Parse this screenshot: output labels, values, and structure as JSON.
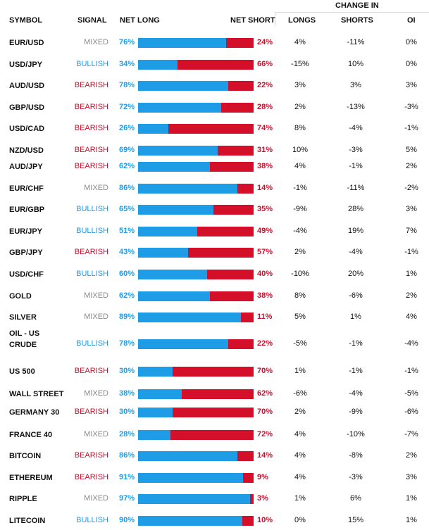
{
  "headers": {
    "symbol": "SYMBOL",
    "signal": "SIGNAL",
    "net_long": "NET LONG",
    "net_short": "NET SHORT",
    "change_in": "CHANGE IN",
    "longs": "LONGS",
    "shorts": "SHORTS",
    "oi": "OI"
  },
  "colors": {
    "long": "#1f9ce6",
    "short": "#d40f2a",
    "bullish": "#1f9ce6",
    "bearish": "#c8102e",
    "mixed": "#888888"
  },
  "rows": [
    {
      "symbol": "EUR/USD",
      "signal": "MIXED",
      "long_pct": 76,
      "short_pct": 24,
      "long_label": "76%",
      "short_label": "24%",
      "longs": "4%",
      "shorts": "-11%",
      "oi": "0%"
    },
    {
      "symbol": "USD/JPY",
      "signal": "BULLISH",
      "long_pct": 34,
      "short_pct": 66,
      "long_label": "34%",
      "short_label": "66%",
      "longs": "-15%",
      "shorts": "10%",
      "oi": "0%"
    },
    {
      "symbol": "AUD/USD",
      "signal": "BEARISH",
      "long_pct": 78,
      "short_pct": 22,
      "long_label": "78%",
      "short_label": "22%",
      "longs": "3%",
      "shorts": "3%",
      "oi": "3%"
    },
    {
      "symbol": "GBP/USD",
      "signal": "BEARISH",
      "long_pct": 72,
      "short_pct": 28,
      "long_label": "72%",
      "short_label": "28%",
      "longs": "2%",
      "shorts": "-13%",
      "oi": "-3%"
    },
    {
      "symbol": "USD/CAD",
      "signal": "BEARISH",
      "long_pct": 26,
      "short_pct": 74,
      "long_label": "26%",
      "short_label": "74%",
      "longs": "8%",
      "shorts": "-4%",
      "oi": "-1%"
    },
    {
      "symbol": "NZD/USD",
      "signal": "BEARISH",
      "long_pct": 69,
      "short_pct": 31,
      "long_label": "69%",
      "short_label": "31%",
      "longs": "10%",
      "shorts": "-3%",
      "oi": "5%"
    },
    {
      "symbol": "AUD/JPY",
      "signal": "BEARISH",
      "long_pct": 62,
      "short_pct": 38,
      "long_label": "62%",
      "short_label": "38%",
      "longs": "4%",
      "shorts": "-1%",
      "oi": "2%"
    },
    {
      "symbol": "EUR/CHF",
      "signal": "MIXED",
      "long_pct": 86,
      "short_pct": 14,
      "long_label": "86%",
      "short_label": "14%",
      "longs": "-1%",
      "shorts": "-11%",
      "oi": "-2%"
    },
    {
      "symbol": "EUR/GBP",
      "signal": "BULLISH",
      "long_pct": 65,
      "short_pct": 35,
      "long_label": "65%",
      "short_label": "35%",
      "longs": "-9%",
      "shorts": "28%",
      "oi": "3%"
    },
    {
      "symbol": "EUR/JPY",
      "signal": "BULLISH",
      "long_pct": 51,
      "short_pct": 49,
      "long_label": "51%",
      "short_label": "49%",
      "longs": "-4%",
      "shorts": "19%",
      "oi": "7%"
    },
    {
      "symbol": "GBP/JPY",
      "signal": "BEARISH",
      "long_pct": 43,
      "short_pct": 57,
      "long_label": "43%",
      "short_label": "57%",
      "longs": "2%",
      "shorts": "-4%",
      "oi": "-1%"
    },
    {
      "symbol": "USD/CHF",
      "signal": "BULLISH",
      "long_pct": 60,
      "short_pct": 40,
      "long_label": "60%",
      "short_label": "40%",
      "longs": "-10%",
      "shorts": "20%",
      "oi": "1%"
    },
    {
      "symbol": "GOLD",
      "signal": "MIXED",
      "long_pct": 62,
      "short_pct": 38,
      "long_label": "62%",
      "short_label": "38%",
      "longs": "8%",
      "shorts": "-6%",
      "oi": "2%"
    },
    {
      "symbol": "SILVER",
      "signal": "MIXED",
      "long_pct": 89,
      "short_pct": 11,
      "long_label": "89%",
      "short_label": "11%",
      "longs": "5%",
      "shorts": "1%",
      "oi": "4%"
    },
    {
      "symbol": "OIL - US CRUDE",
      "signal": "BULLISH",
      "long_pct": 78,
      "short_pct": 22,
      "long_label": "78%",
      "short_label": "22%",
      "longs": "-5%",
      "shorts": "-1%",
      "oi": "-4%"
    },
    {
      "symbol": "US 500",
      "signal": "BEARISH",
      "long_pct": 30,
      "short_pct": 70,
      "long_label": "30%",
      "short_label": "70%",
      "longs": "1%",
      "shorts": "-1%",
      "oi": "-1%"
    },
    {
      "symbol": "WALL STREET",
      "signal": "MIXED",
      "long_pct": 38,
      "short_pct": 62,
      "long_label": "38%",
      "short_label": "62%",
      "longs": "-6%",
      "shorts": "-4%",
      "oi": "-5%"
    },
    {
      "symbol": "GERMANY 30",
      "signal": "BEARISH",
      "long_pct": 30,
      "short_pct": 70,
      "long_label": "30%",
      "short_label": "70%",
      "longs": "2%",
      "shorts": "-9%",
      "oi": "-6%"
    },
    {
      "symbol": "FRANCE 40",
      "signal": "MIXED",
      "long_pct": 28,
      "short_pct": 72,
      "long_label": "28%",
      "short_label": "72%",
      "longs": "4%",
      "shorts": "-10%",
      "oi": "-7%"
    },
    {
      "symbol": "BITCOIN",
      "signal": "BEARISH",
      "long_pct": 86,
      "short_pct": 14,
      "long_label": "86%",
      "short_label": "14%",
      "longs": "4%",
      "shorts": "-8%",
      "oi": "2%"
    },
    {
      "symbol": "ETHEREUM",
      "signal": "BEARISH",
      "long_pct": 91,
      "short_pct": 9,
      "long_label": "91%",
      "short_label": "9%",
      "longs": "4%",
      "shorts": "-3%",
      "oi": "3%"
    },
    {
      "symbol": "RIPPLE",
      "signal": "MIXED",
      "long_pct": 97,
      "short_pct": 3,
      "long_label": "97%",
      "short_label": "3%",
      "longs": "1%",
      "shorts": "6%",
      "oi": "1%"
    },
    {
      "symbol": "LITECOIN",
      "signal": "BULLISH",
      "long_pct": 90,
      "short_pct": 10,
      "long_label": "90%",
      "short_label": "10%",
      "longs": "0%",
      "shorts": "15%",
      "oi": "1%"
    }
  ]
}
